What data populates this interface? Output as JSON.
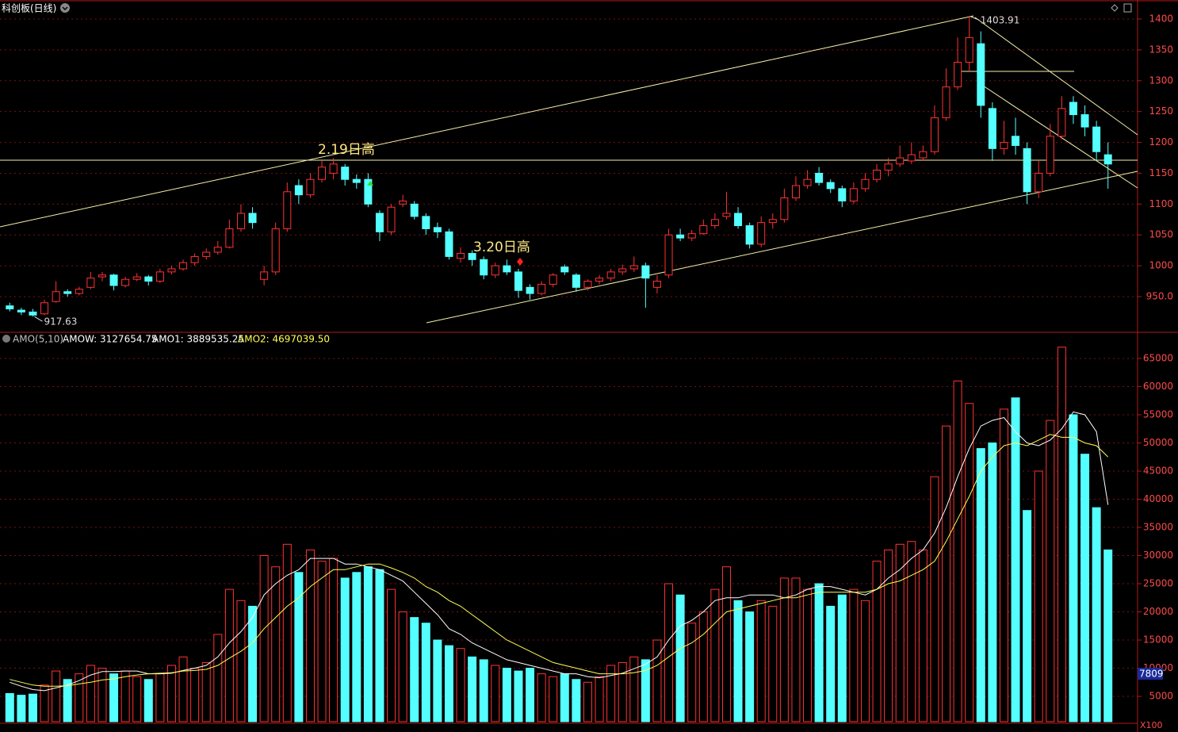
{
  "chart_data": [
    {
      "type": "candlestick",
      "title": "科创板(日线)",
      "up_color": "#ff3232",
      "down_color": "#54ffff",
      "ylim": [
        893.4,
        1430.9
      ],
      "yticks": [
        {
          "value": 950,
          "label": "950.0"
        },
        1000,
        1050,
        1100,
        1150,
        1200,
        1250,
        1300,
        1350,
        1400
      ],
      "grid": true,
      "annotations": [
        "2.19日高",
        "3.20日高"
      ],
      "max_label": {
        "value": 1403.91,
        "label": "1403.91"
      },
      "min_label": {
        "value": 917.63,
        "label": "917.63"
      },
      "ohlc": [
        [
          935,
          940,
          926,
          930
        ],
        [
          928,
          932,
          920,
          925
        ],
        [
          925,
          930,
          917.63,
          920
        ],
        [
          922,
          945,
          920,
          940
        ],
        [
          942,
          975,
          940,
          958
        ],
        [
          958,
          962,
          950,
          955
        ],
        [
          955,
          966,
          952,
          962
        ],
        [
          965,
          990,
          962,
          980
        ],
        [
          982,
          990,
          975,
          985
        ],
        [
          985,
          987,
          960,
          968
        ],
        [
          968,
          982,
          965,
          978
        ],
        [
          978,
          988,
          975,
          982
        ],
        [
          982,
          985,
          968,
          975
        ],
        [
          975,
          995,
          972,
          990
        ],
        [
          990,
          1000,
          986,
          995
        ],
        [
          995,
          1010,
          992,
          1005
        ],
        [
          1005,
          1020,
          1000,
          1015
        ],
        [
          1015,
          1028,
          1010,
          1022
        ],
        [
          1022,
          1040,
          1018,
          1030
        ],
        [
          1030,
          1075,
          1028,
          1060
        ],
        [
          1060,
          1100,
          1055,
          1085
        ],
        [
          1085,
          1095,
          1060,
          1070
        ],
        [
          978,
          1000,
          968,
          990
        ],
        [
          990,
          1070,
          985,
          1060
        ],
        [
          1060,
          1135,
          1055,
          1120
        ],
        [
          1130,
          1140,
          1100,
          1115
        ],
        [
          1115,
          1150,
          1110,
          1140
        ],
        [
          1140,
          1170,
          1135,
          1160
        ],
        [
          1150,
          1175,
          1140,
          1165
        ],
        [
          1160,
          1165,
          1130,
          1140
        ],
        [
          1140,
          1148,
          1125,
          1135
        ],
        [
          1140,
          1150,
          1095,
          1100
        ],
        [
          1085,
          1090,
          1040,
          1055
        ],
        [
          1055,
          1100,
          1050,
          1095
        ],
        [
          1100,
          1115,
          1095,
          1105
        ],
        [
          1100,
          1105,
          1075,
          1080
        ],
        [
          1080,
          1085,
          1050,
          1060
        ],
        [
          1062,
          1070,
          1045,
          1055
        ],
        [
          1055,
          1060,
          1010,
          1015
        ],
        [
          1012,
          1030,
          1005,
          1020
        ],
        [
          1020,
          1025,
          1000,
          1010
        ],
        [
          1010,
          1015,
          978,
          985
        ],
        [
          985,
          1005,
          980,
          1000
        ],
        [
          1000,
          1010,
          985,
          990
        ],
        [
          990,
          995,
          948,
          960
        ],
        [
          965,
          970,
          945,
          955
        ],
        [
          955,
          975,
          952,
          970
        ],
        [
          970,
          988,
          965,
          985
        ],
        [
          998,
          1002,
          985,
          990
        ],
        [
          985,
          988,
          958,
          965
        ],
        [
          965,
          978,
          960,
          975
        ],
        [
          975,
          985,
          970,
          980
        ],
        [
          980,
          995,
          975,
          990
        ],
        [
          990,
          1002,
          985,
          995
        ],
        [
          995,
          1015,
          990,
          1000
        ],
        [
          1000,
          1005,
          932,
          980
        ],
        [
          965,
          985,
          955,
          975
        ],
        [
          985,
          1060,
          980,
          1050
        ],
        [
          1050,
          1060,
          1040,
          1045
        ],
        [
          1045,
          1058,
          1040,
          1052
        ],
        [
          1052,
          1075,
          1050,
          1065
        ],
        [
          1065,
          1085,
          1060,
          1075
        ],
        [
          1080,
          1120,
          1075,
          1085
        ],
        [
          1085,
          1095,
          1060,
          1065
        ],
        [
          1065,
          1070,
          1028,
          1035
        ],
        [
          1035,
          1080,
          1030,
          1070
        ],
        [
          1070,
          1085,
          1060,
          1075
        ],
        [
          1075,
          1125,
          1070,
          1110
        ],
        [
          1110,
          1145,
          1105,
          1130
        ],
        [
          1130,
          1155,
          1125,
          1140
        ],
        [
          1150,
          1160,
          1130,
          1135
        ],
        [
          1135,
          1140,
          1118,
          1125
        ],
        [
          1125,
          1130,
          1095,
          1105
        ],
        [
          1105,
          1135,
          1100,
          1125
        ],
        [
          1125,
          1150,
          1120,
          1140
        ],
        [
          1140,
          1165,
          1135,
          1155
        ],
        [
          1155,
          1175,
          1145,
          1165
        ],
        [
          1165,
          1195,
          1160,
          1175
        ],
        [
          1170,
          1200,
          1165,
          1180
        ],
        [
          1175,
          1195,
          1170,
          1185
        ],
        [
          1185,
          1260,
          1180,
          1240
        ],
        [
          1240,
          1320,
          1235,
          1290
        ],
        [
          1290,
          1370,
          1285,
          1330
        ],
        [
          1330,
          1403.91,
          1315,
          1370
        ],
        [
          1360,
          1380,
          1240,
          1260
        ],
        [
          1255,
          1265,
          1170,
          1190
        ],
        [
          1190,
          1235,
          1180,
          1200
        ],
        [
          1210,
          1240,
          1180,
          1195
        ],
        [
          1190,
          1200,
          1100,
          1120
        ],
        [
          1120,
          1170,
          1110,
          1150
        ],
        [
          1150,
          1230,
          1145,
          1210
        ],
        [
          1210,
          1275,
          1205,
          1255
        ],
        [
          1265,
          1275,
          1230,
          1245
        ],
        [
          1245,
          1260,
          1210,
          1225
        ],
        [
          1225,
          1235,
          1170,
          1185
        ],
        [
          1180,
          1200,
          1125,
          1165
        ]
      ]
    },
    {
      "type": "volume",
      "header": [
        "AMO(5,10)",
        "AMOW: 3127654.75",
        "AMO1: 3889535.25",
        "AMO2: 4697039.50"
      ],
      "header_colors": [
        "#c0c0c0",
        "#ffffff",
        "#ffffff",
        "#ffff54"
      ],
      "unit_label": "X100",
      "cursor_label": "7809",
      "ylim": [
        500,
        69500
      ],
      "yticks": [
        5000,
        10000,
        15000,
        20000,
        25000,
        30000,
        35000,
        40000,
        45000,
        50000,
        55000,
        60000,
        65000
      ],
      "grid": true,
      "values": [
        5500,
        5200,
        5400,
        7000,
        9500,
        8000,
        9000,
        10500,
        10000,
        9000,
        9500,
        8500,
        8000,
        9000,
        10500,
        12000,
        10000,
        11000,
        16000,
        24000,
        22000,
        21000,
        30000,
        28000,
        32000,
        27000,
        31000,
        29000,
        29500,
        26000,
        27000,
        28000,
        27500,
        24000,
        20000,
        19000,
        18000,
        15000,
        14000,
        13500,
        12000,
        11500,
        10500,
        10000,
        9500,
        10000,
        9000,
        8500,
        9000,
        8000,
        7500,
        8500,
        10500,
        11000,
        12000,
        11500,
        15000,
        25000,
        23000,
        18000,
        20000,
        24000,
        28000,
        22000,
        20000,
        22000,
        21000,
        26000,
        26000,
        24000,
        25000,
        21000,
        23000,
        24000,
        22000,
        29000,
        31000,
        32000,
        32500,
        31000,
        44000,
        53000,
        61000,
        57000,
        49000,
        50000,
        56000,
        58000,
        38000,
        45000,
        54000,
        67000,
        55000,
        48000,
        38500,
        31000
      ],
      "series": [
        {
          "color": "#ffffff",
          "values": [
            7500,
            6800,
            6200,
            6000,
            6500,
            7000,
            7800,
            8800,
            9400,
            9400,
            9500,
            9500,
            9000,
            9000,
            9100,
            9600,
            10000,
            10500,
            12000,
            14500,
            16500,
            19000,
            23000,
            25000,
            26500,
            27500,
            29500,
            29500,
            29500,
            28500,
            28500,
            28000,
            27500,
            26500,
            25500,
            23500,
            21500,
            19500,
            17000,
            16000,
            14500,
            13500,
            12500,
            11500,
            11000,
            10500,
            10000,
            9500,
            9000,
            9000,
            8500,
            8300,
            8700,
            9100,
            9900,
            10700,
            12000,
            15000,
            17500,
            18500,
            20000,
            22000,
            22500,
            22500,
            23000,
            23000,
            23000,
            22500,
            23000,
            24000,
            24500,
            24500,
            24000,
            23500,
            23000,
            24000,
            26000,
            27500,
            29500,
            31000,
            34000,
            38500,
            44000,
            49000,
            53000,
            54000,
            54500,
            52000,
            50000,
            49500,
            50500,
            52500,
            55500,
            55000,
            52000,
            39000
          ]
        },
        {
          "color": "#ffff54",
          "values": [
            8000,
            7500,
            7000,
            6800,
            6800,
            6900,
            7200,
            7500,
            7900,
            8100,
            8500,
            8800,
            9000,
            9100,
            9200,
            9500,
            9600,
            9800,
            10500,
            11800,
            13000,
            14500,
            17000,
            19000,
            21000,
            22500,
            24500,
            26000,
            27500,
            27500,
            28000,
            28500,
            28500,
            27800,
            27000,
            26000,
            24500,
            23500,
            22000,
            21000,
            19500,
            18000,
            16500,
            15000,
            14000,
            13000,
            12000,
            11000,
            10500,
            10000,
            9500,
            9000,
            9000,
            9000,
            9200,
            9600,
            10500,
            12000,
            13500,
            14500,
            16000,
            18000,
            20000,
            20500,
            21000,
            21500,
            22000,
            22500,
            22500,
            23000,
            23500,
            23500,
            23500,
            23500,
            23500,
            24000,
            25000,
            25500,
            26500,
            27500,
            29000,
            32500,
            36500,
            40500,
            45000,
            47500,
            49500,
            50000,
            49500,
            50500,
            51500,
            51000,
            51000,
            50000,
            49500,
            47500
          ]
        }
      ]
    }
  ]
}
